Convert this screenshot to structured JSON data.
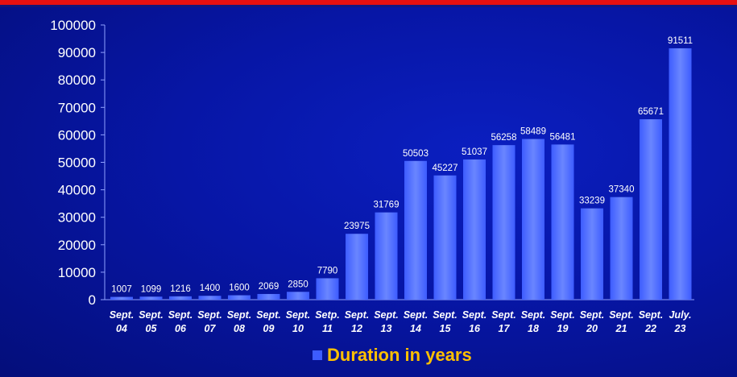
{
  "colors": {
    "bar": "#3d5cff",
    "bar_top": "#6a86ff",
    "text": "#ffffff",
    "legend_text": "#ffc000",
    "top_bar": "#e81010"
  },
  "legend": {
    "label": "Duration in years"
  },
  "chart_data": {
    "type": "bar",
    "categories": [
      [
        "Sept.",
        "04"
      ],
      [
        "Sept.",
        "05"
      ],
      [
        "Sept.",
        "06"
      ],
      [
        "Sept.",
        "07"
      ],
      [
        "Sept.",
        "08"
      ],
      [
        "Sept.",
        "09"
      ],
      [
        "Sept.",
        "10"
      ],
      [
        "Setp.",
        "11"
      ],
      [
        "Sept.",
        "12"
      ],
      [
        "Sept.",
        "13"
      ],
      [
        "Sept.",
        "14"
      ],
      [
        "Sept.",
        "15"
      ],
      [
        "Sept.",
        "16"
      ],
      [
        "Sept.",
        "17"
      ],
      [
        "Sept.",
        "18"
      ],
      [
        "Sept.",
        "19"
      ],
      [
        "Sept.",
        "20"
      ],
      [
        "Sept.",
        "21"
      ],
      [
        "Sept.",
        "22"
      ],
      [
        "July.",
        "23"
      ]
    ],
    "series": [
      {
        "name": "Duration in years",
        "values": [
          1007,
          1099,
          1216,
          1400,
          1600,
          2069,
          2850,
          7790,
          23975,
          31769,
          50503,
          45227,
          51037,
          56258,
          58489,
          56481,
          33239,
          37340,
          65671,
          91511
        ]
      }
    ],
    "ylim": [
      0,
      100000
    ],
    "yticks": [
      0,
      10000,
      20000,
      30000,
      40000,
      50000,
      60000,
      70000,
      80000,
      90000,
      100000
    ],
    "data_labels": true,
    "grid": false,
    "legend_position": "bottom"
  }
}
